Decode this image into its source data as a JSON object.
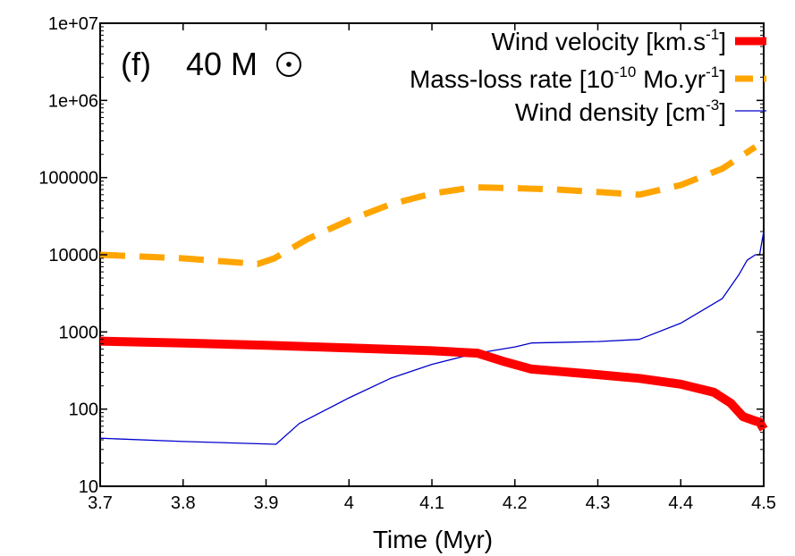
{
  "chart_data": {
    "type": "line",
    "panel_label": "(f)",
    "mass_label": "40 M",
    "xlabel": "Time (Myr)",
    "ylabel": "",
    "xlim": [
      3.7,
      4.5
    ],
    "ylim": [
      10,
      10000000
    ],
    "yscale": "log",
    "grid": false,
    "legend_position": "top-right",
    "x_ticks": [
      3.7,
      3.8,
      3.9,
      4.0,
      4.1,
      4.2,
      4.3,
      4.4,
      4.5
    ],
    "x_tick_labels": [
      "3.7",
      "3.8",
      "3.9",
      "4",
      "4.1",
      "4.2",
      "4.3",
      "4.4",
      "4.5"
    ],
    "y_ticks": [
      10,
      100,
      1000,
      10000,
      100000,
      1000000,
      10000000
    ],
    "y_tick_labels": [
      "10",
      "100",
      "1000",
      "10000",
      "100000",
      "1e+06",
      "1e+07"
    ],
    "series": [
      {
        "name": "Wind velocity",
        "legend": {
          "base": "Wind velocity [km.s",
          "sup": "-1",
          "end": "]"
        },
        "color": "#ff0000",
        "style": "solid-thick",
        "x": [
          3.7,
          3.8,
          3.9,
          4.0,
          4.1,
          4.155,
          4.185,
          4.22,
          4.3,
          4.35,
          4.4,
          4.44,
          4.46,
          4.475,
          4.49,
          4.495,
          4.5
        ],
        "y": [
          760,
          720,
          670,
          620,
          570,
          530,
          420,
          330,
          280,
          250,
          210,
          165,
          120,
          80,
          70,
          68,
          55
        ]
      },
      {
        "name": "Mass-loss rate",
        "legend": {
          "base": "Mass-loss rate [10",
          "sup": "-10",
          "mid": " Mo.yr",
          "sup2": "-1",
          "end": "]"
        },
        "color": "#ffa500",
        "style": "dashed-thick",
        "x": [
          3.7,
          3.8,
          3.89,
          3.91,
          3.95,
          4.0,
          4.05,
          4.1,
          4.15,
          4.2,
          4.25,
          4.3,
          4.35,
          4.4,
          4.45,
          4.49
        ],
        "y": [
          10000,
          9000,
          7600,
          9000,
          16000,
          28000,
          45000,
          62000,
          75000,
          73000,
          70000,
          65000,
          60000,
          80000,
          130000,
          250000
        ]
      },
      {
        "name": "Wind density",
        "legend": {
          "base": "Wind density [cm",
          "sup": "-3",
          "end": "]"
        },
        "color": "#0000cc",
        "style": "solid-thin",
        "x": [
          3.7,
          3.8,
          3.912,
          3.94,
          4.0,
          4.05,
          4.1,
          4.15,
          4.2,
          4.22,
          4.3,
          4.35,
          4.4,
          4.45,
          4.47,
          4.48,
          4.49,
          4.495,
          4.5
        ],
        "y": [
          42,
          38,
          35,
          65,
          140,
          250,
          380,
          520,
          640,
          720,
          750,
          800,
          1300,
          2700,
          5500,
          8500,
          10000,
          10000,
          20000
        ]
      }
    ]
  }
}
